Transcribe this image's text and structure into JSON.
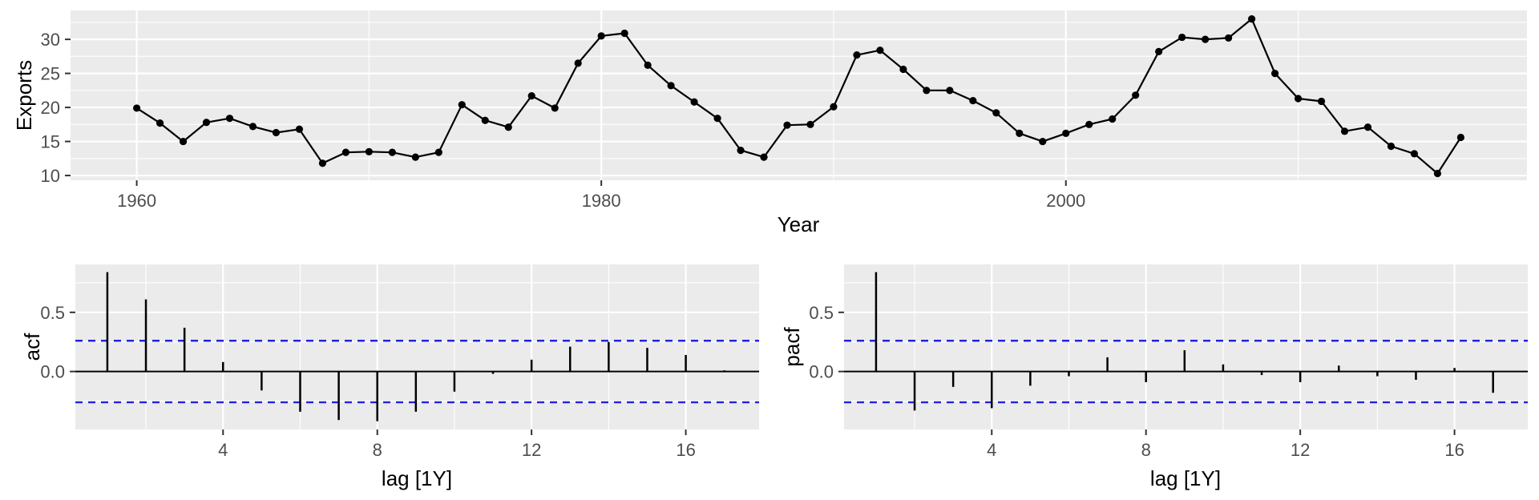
{
  "labels": {
    "top_y_title": "Exports",
    "top_x_title": "Year",
    "acf_y_title": "acf",
    "pacf_y_title": "pacf",
    "lag_x_title": "lag [1Y]"
  },
  "colors": {
    "panel_bg": "#EBEBEB",
    "grid": "#FFFFFF",
    "series": "#000000",
    "tick_text": "#4D4D4D",
    "tick_mark": "#333333",
    "conf_dashed": "#2222DD",
    "zero_line": "#000000"
  },
  "chart_data": [
    {
      "id": "exports",
      "type": "line",
      "title": "",
      "xlabel": "Year",
      "ylabel": "Exports",
      "x": [
        1960,
        1961,
        1962,
        1963,
        1964,
        1965,
        1966,
        1967,
        1968,
        1969,
        1970,
        1971,
        1972,
        1973,
        1974,
        1975,
        1976,
        1977,
        1978,
        1979,
        1980,
        1981,
        1982,
        1983,
        1984,
        1985,
        1986,
        1987,
        1988,
        1989,
        1990,
        1991,
        1992,
        1993,
        1994,
        1995,
        1996,
        1997,
        1998,
        1999,
        2000,
        2001,
        2002,
        2003,
        2004,
        2005,
        2006,
        2007,
        2008,
        2009,
        2010,
        2011,
        2012,
        2013,
        2014,
        2015,
        2016,
        2017
      ],
      "values": [
        19.9,
        17.7,
        15.0,
        17.8,
        18.4,
        17.2,
        16.3,
        16.8,
        11.8,
        13.4,
        13.5,
        13.4,
        12.7,
        13.4,
        20.4,
        18.1,
        17.1,
        21.7,
        19.9,
        26.5,
        30.5,
        30.9,
        26.2,
        23.2,
        20.8,
        18.4,
        13.7,
        12.7,
        17.4,
        17.5,
        20.1,
        27.7,
        28.4,
        25.6,
        22.5,
        22.5,
        21.0,
        19.2,
        16.2,
        15.0,
        16.2,
        17.5,
        18.3,
        21.8,
        28.2,
        30.3,
        30.0,
        30.2,
        33.0,
        25.0,
        21.3,
        20.9,
        16.5,
        17.1,
        14.3,
        13.2,
        10.3,
        15.6
      ],
      "x_ticks": [
        1960,
        1980,
        2000
      ],
      "x_tick_labels": [
        "1960",
        "1980",
        "2000"
      ],
      "x_minor": [
        1970,
        1990,
        2010
      ],
      "y_ticks": [
        10,
        15,
        20,
        25,
        30
      ],
      "y_tick_labels": [
        "10",
        "15",
        "20",
        "25",
        "30"
      ],
      "y_minor": [
        12.5,
        17.5,
        22.5,
        27.5,
        32.5
      ],
      "xlim": [
        1957.15,
        2019.85
      ],
      "ylim": [
        9.3,
        34.25
      ],
      "grid": true,
      "legend": "none"
    },
    {
      "id": "acf",
      "type": "bar",
      "title": "",
      "xlabel": "lag [1Y]",
      "ylabel": "acf",
      "lags": [
        1,
        2,
        3,
        4,
        5,
        6,
        7,
        8,
        9,
        10,
        11,
        12,
        13,
        14,
        15,
        16,
        17
      ],
      "values": [
        0.84,
        0.61,
        0.37,
        0.08,
        -0.16,
        -0.34,
        -0.41,
        -0.42,
        -0.34,
        -0.17,
        -0.02,
        0.1,
        0.21,
        0.25,
        0.2,
        0.14,
        0.01
      ],
      "conf_bound": 0.26,
      "x_ticks": [
        4,
        8,
        12,
        16
      ],
      "x_tick_labels": [
        "4",
        "8",
        "12",
        "16"
      ],
      "x_minor": [
        2,
        6,
        10,
        14
      ],
      "y_ticks": [
        0.0,
        0.5
      ],
      "y_tick_labels": [
        "0.0",
        "0.5"
      ],
      "y_minor": [
        -0.25,
        0.25,
        0.75
      ],
      "xlim": [
        0.17,
        17.9
      ],
      "ylim": [
        -0.49,
        0.905
      ],
      "grid": true
    },
    {
      "id": "pacf",
      "type": "bar",
      "title": "",
      "xlabel": "lag [1Y]",
      "ylabel": "pacf",
      "lags": [
        1,
        2,
        3,
        4,
        5,
        6,
        7,
        8,
        9,
        10,
        11,
        12,
        13,
        14,
        15,
        16,
        17
      ],
      "values": [
        0.84,
        -0.33,
        -0.13,
        -0.31,
        -0.12,
        -0.04,
        0.12,
        -0.09,
        0.18,
        0.06,
        -0.03,
        -0.09,
        0.05,
        -0.04,
        -0.07,
        0.03,
        -0.18
      ],
      "conf_bound": 0.26,
      "x_ticks": [
        4,
        8,
        12,
        16
      ],
      "x_tick_labels": [
        "4",
        "8",
        "12",
        "16"
      ],
      "x_minor": [
        2,
        6,
        10,
        14
      ],
      "y_ticks": [
        0.0,
        0.5
      ],
      "y_tick_labels": [
        "0.0",
        "0.5"
      ],
      "y_minor": [
        -0.25,
        0.25,
        0.75
      ],
      "xlim": [
        0.17,
        17.9
      ],
      "ylim": [
        -0.49,
        0.905
      ],
      "grid": true
    }
  ]
}
